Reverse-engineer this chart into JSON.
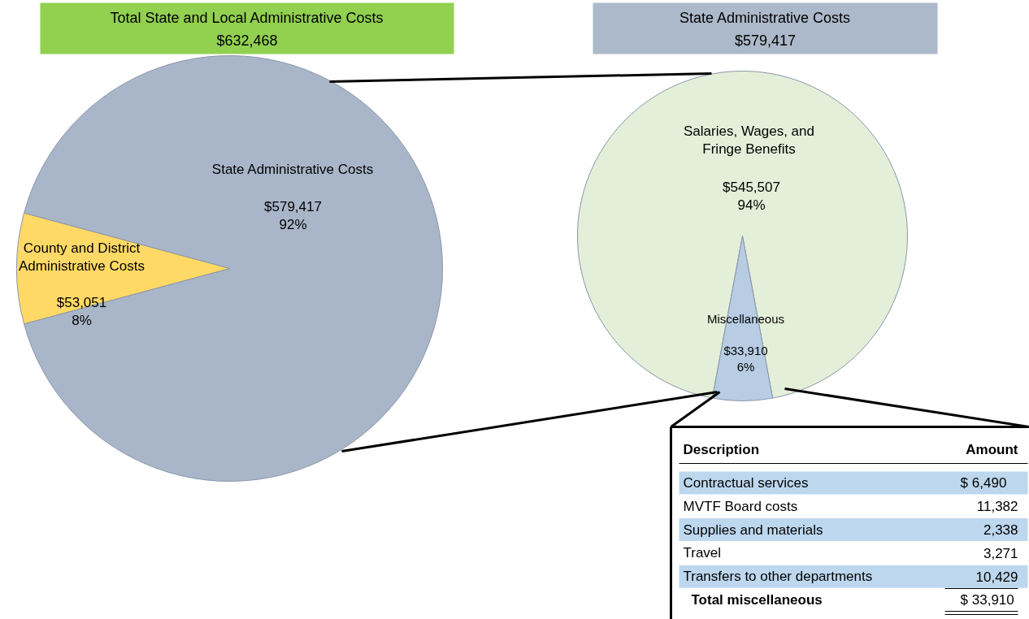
{
  "chart_data": [
    {
      "type": "pie",
      "title": "Total State and Local Administrative Costs",
      "subtitle": "$632,468",
      "categories": [
        "State Administrative Costs",
        "County and District Administrative Costs"
      ],
      "values": [
        579417,
        53051
      ],
      "colors": [
        "#a9b6c9",
        "#ffd966"
      ],
      "value_labels": [
        "$579,417\n92%",
        "$53,051\n8%"
      ]
    },
    {
      "type": "pie",
      "title": "State Administrative Costs",
      "subtitle": "$579,417",
      "categories": [
        "Salaries, Wages, and Fringe Benefits",
        "Miscellaneous"
      ],
      "values": [
        545507,
        33910
      ],
      "colors": [
        "#e3efd9",
        "#b8cce4"
      ],
      "value_labels": [
        "$545,507\n94%",
        "$33,910\n6%"
      ]
    },
    {
      "type": "other",
      "categories": [
        "Contractual services",
        "MVTF Board costs",
        "Supplies and materials",
        "Travel",
        "Transfers to other departments"
      ],
      "value_labels": [
        "$    6,490",
        "11,382",
        "2,338",
        "3,271",
        "10,429"
      ],
      "annotations": [
        "Description",
        "Amount",
        "Total miscellaneous"
      ],
      "totals": [
        "$  33,910"
      ]
    }
  ]
}
